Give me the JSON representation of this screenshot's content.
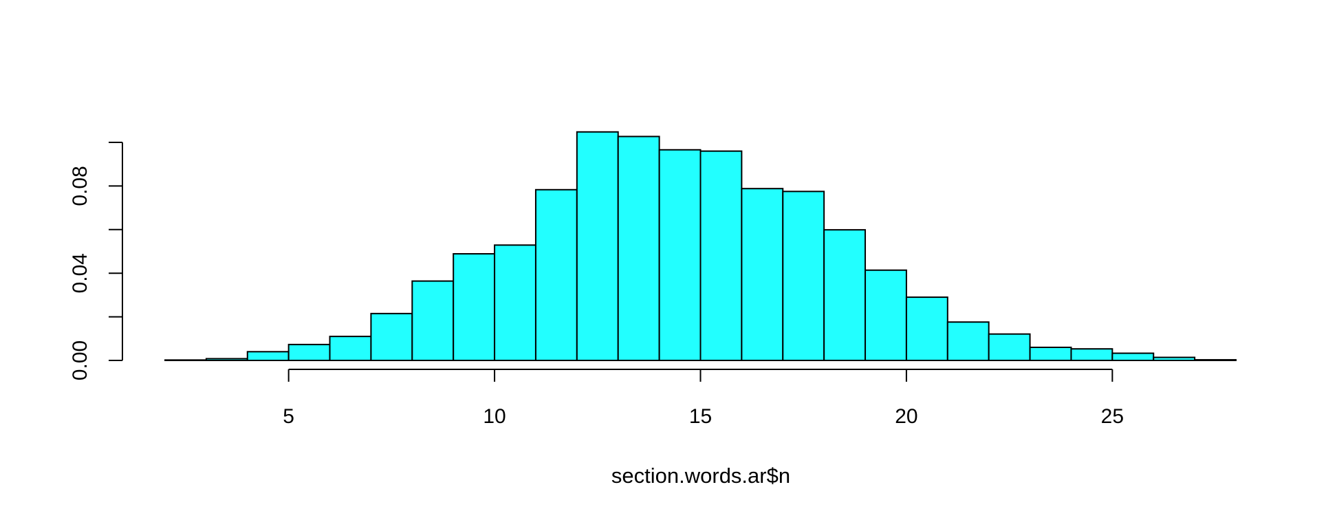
{
  "chart_data": {
    "type": "bar",
    "title": "",
    "xlabel": "section.words.ar$n",
    "ylabel": "",
    "bin_edges": [
      2,
      3,
      4,
      5,
      6,
      7,
      8,
      9,
      10,
      11,
      12,
      13,
      14,
      15,
      16,
      17,
      18,
      19,
      20,
      21,
      22,
      23,
      24,
      25,
      26,
      27,
      28
    ],
    "values": [
      0.0002,
      0.0008,
      0.004,
      0.0073,
      0.011,
      0.0215,
      0.0364,
      0.0489,
      0.0529,
      0.0783,
      0.1048,
      0.1027,
      0.0966,
      0.096,
      0.0788,
      0.0775,
      0.0599,
      0.0414,
      0.029,
      0.0176,
      0.0121,
      0.006,
      0.0053,
      0.0033,
      0.0014,
      0.0003
    ],
    "xlim": [
      2,
      28
    ],
    "ylim": [
      0,
      0.1
    ],
    "x_ticks": [
      5,
      10,
      15,
      20,
      25
    ],
    "x_tick_labels": [
      "5",
      "10",
      "15",
      "20",
      "25"
    ],
    "y_ticks": [
      0,
      0.02,
      0.04,
      0.06,
      0.08,
      0.1
    ],
    "y_tick_labels": [
      "0.00",
      "",
      "0.04",
      "",
      "0.08",
      ""
    ],
    "grid": false,
    "bar_color": "#22FFFF",
    "edge_color": "#000000"
  }
}
